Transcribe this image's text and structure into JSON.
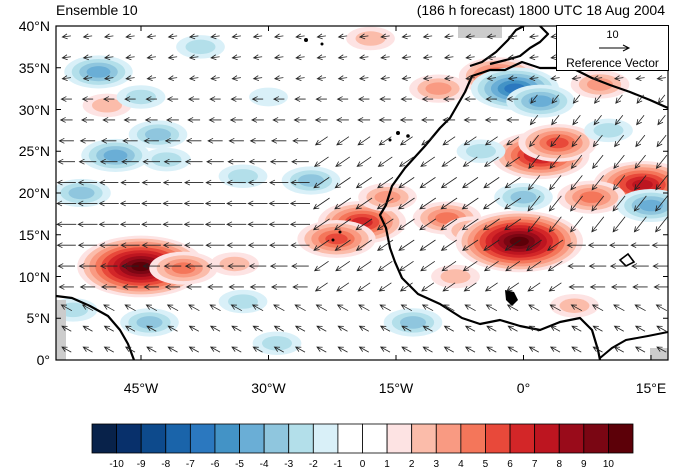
{
  "header": {
    "ensemble": "Ensemble 10",
    "forecast": "(186 h forecast) 1800 UTC 18 Aug 2004"
  },
  "map": {
    "region": "North Atlantic / West Africa",
    "projection": "cylindrical equidistant",
    "lon_range": [
      -55,
      17
    ],
    "lat_range": [
      0,
      40
    ],
    "lat_labels": [
      "0°",
      "5°N",
      "10°N",
      "15°N",
      "20°N",
      "25°N",
      "30°N",
      "35°N",
      "40°N"
    ],
    "lon_labels": [
      "45°W",
      "30°W",
      "15°W",
      "0°",
      "15°E"
    ],
    "lon_label_values": [
      -45,
      -30,
      -15,
      0,
      15
    ]
  },
  "reference_vector": {
    "magnitude": "10",
    "label": "Reference Vector"
  },
  "colorbar": {
    "labels": [
      "-10",
      "-9",
      "-8",
      "-7",
      "-6",
      "-5",
      "-4",
      "-3",
      "-2",
      "-1",
      "0",
      "1",
      "2",
      "3",
      "4",
      "5",
      "6",
      "7",
      "8",
      "9",
      "10"
    ],
    "colors": [
      "#08224a",
      "#08306b",
      "#0d4a8c",
      "#1a64aa",
      "#2b78bf",
      "#4393c6",
      "#6aaed6",
      "#8fc6de",
      "#b3dfea",
      "#d9f0f8",
      "#ffffff",
      "#ffffff",
      "#fde3e3",
      "#fbbcaa",
      "#f99a82",
      "#f4765a",
      "#e8493a",
      "#d32628",
      "#bd1520",
      "#990b1a",
      "#7a0613",
      "#5c0008"
    ]
  },
  "anomalies": [
    {
      "lon": -45,
      "lat": 11.2,
      "value": 10
    },
    {
      "lon": -40,
      "lat": 11,
      "value": 4
    },
    {
      "lon": -34,
      "lat": 11.5,
      "value": 2
    },
    {
      "lon": -19,
      "lat": 16.5,
      "value": 6
    },
    {
      "lon": -22,
      "lat": 14.5,
      "value": 5
    },
    {
      "lon": -16,
      "lat": 19.5,
      "value": 3
    },
    {
      "lon": -9,
      "lat": 17,
      "value": 4
    },
    {
      "lon": -6,
      "lat": 15.5,
      "value": 3
    },
    {
      "lon": -0.5,
      "lat": 14.2,
      "value": 10
    },
    {
      "lon": 2,
      "lat": 24.5,
      "value": 7
    },
    {
      "lon": 4,
      "lat": 26,
      "value": 5
    },
    {
      "lon": 14,
      "lat": 21,
      "value": 7
    },
    {
      "lon": 8,
      "lat": 19.5,
      "value": 4
    },
    {
      "lon": -3,
      "lat": 34,
      "value": 5
    },
    {
      "lon": -10,
      "lat": 32.5,
      "value": 3
    },
    {
      "lon": -18,
      "lat": 38.5,
      "value": 2
    },
    {
      "lon": 9,
      "lat": 33,
      "value": 3
    },
    {
      "lon": -49,
      "lat": 30.5,
      "value": 2
    },
    {
      "lon": -1,
      "lat": 32.5,
      "value": -6
    },
    {
      "lon": 2,
      "lat": 31,
      "value": -4
    },
    {
      "lon": -25,
      "lat": 21.5,
      "value": -3
    },
    {
      "lon": -33,
      "lat": 22,
      "value": -2
    },
    {
      "lon": -42,
      "lat": 24,
      "value": -2
    },
    {
      "lon": -52,
      "lat": 20,
      "value": -3
    },
    {
      "lon": -48,
      "lat": 24.5,
      "value": -4
    },
    {
      "lon": -43,
      "lat": 27,
      "value": -3
    },
    {
      "lon": -50,
      "lat": 34.5,
      "value": -4
    },
    {
      "lon": -38,
      "lat": 37.5,
      "value": -2
    },
    {
      "lon": -45,
      "lat": 31.5,
      "value": -2
    },
    {
      "lon": -30,
      "lat": 31.5,
      "value": -1
    },
    {
      "lon": -5,
      "lat": 25,
      "value": -2
    },
    {
      "lon": 0,
      "lat": 19.5,
      "value": -3
    },
    {
      "lon": 15,
      "lat": 18.5,
      "value": -4
    },
    {
      "lon": -44,
      "lat": 4.5,
      "value": -3
    },
    {
      "lon": -29,
      "lat": 2,
      "value": -2
    },
    {
      "lon": -13,
      "lat": 4.5,
      "value": -3
    },
    {
      "lon": -33,
      "lat": 7,
      "value": -2
    },
    {
      "lon": -53,
      "lat": 6,
      "value": -2
    },
    {
      "lon": 10,
      "lat": 27.5,
      "value": -2
    },
    {
      "lon": 6,
      "lat": 6.5,
      "value": 2
    },
    {
      "lon": -8,
      "lat": 10,
      "value": 2
    }
  ],
  "wind": {
    "lon_step": 2.5,
    "lat_step": 2.5,
    "easterly_speed": 8,
    "westerly_speed": 4
  }
}
